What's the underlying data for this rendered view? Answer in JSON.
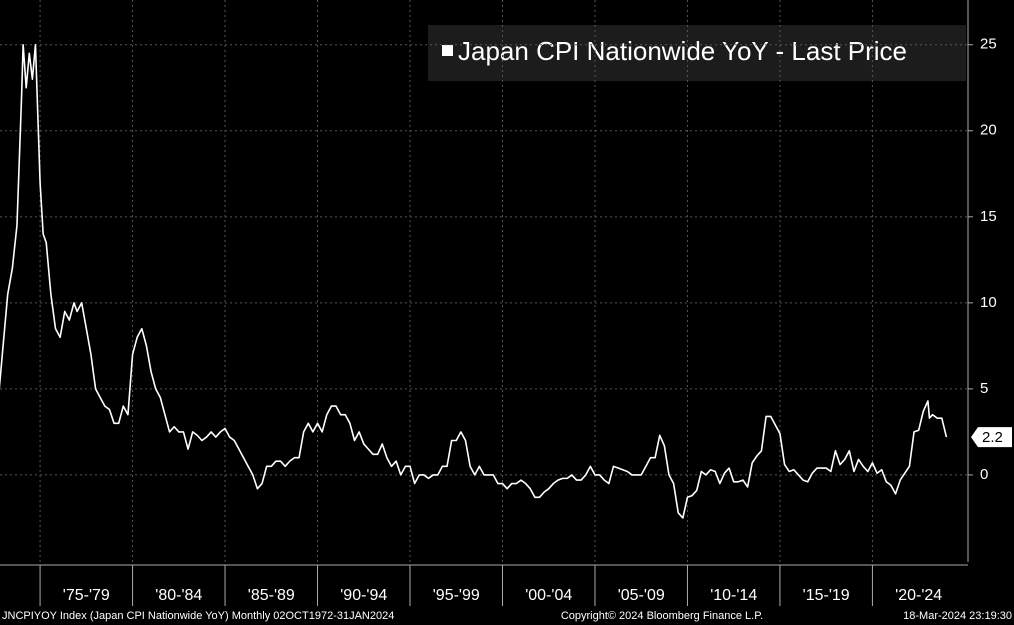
{
  "chart_data": {
    "type": "line",
    "legend": "Japan CPI Nationwide YoY - Last Price",
    "footer_left": "JNCPIYOY Index (Japan CPI Nationwide YoY)  Monthly 02OCT1972-31JAN2024",
    "footer_center": "Copyright© 2024 Bloomberg Finance L.P.",
    "footer_right": "18-Mar-2024 23:19:30",
    "x": [
      "1972-10",
      "1973-01",
      "1973-04",
      "1973-07",
      "1973-10",
      "1974-01",
      "1974-02",
      "1974-04",
      "1974-06",
      "1974-08",
      "1974-10",
      "1975-01",
      "1975-03",
      "1975-05",
      "1975-08",
      "1975-11",
      "1976-02",
      "1976-05",
      "1976-08",
      "1976-11",
      "1977-01",
      "1977-04",
      "1977-07",
      "1977-10",
      "1978-01",
      "1978-04",
      "1978-07",
      "1978-10",
      "1979-01",
      "1979-04",
      "1979-07",
      "1979-10",
      "1980-01",
      "1980-04",
      "1980-07",
      "1980-10",
      "1981-01",
      "1981-04",
      "1981-07",
      "1981-10",
      "1982-01",
      "1982-04",
      "1982-07",
      "1982-10",
      "1983-01",
      "1983-04",
      "1983-07",
      "1983-10",
      "1984-01",
      "1984-04",
      "1984-07",
      "1984-10",
      "1985-01",
      "1985-04",
      "1985-07",
      "1985-10",
      "1986-01",
      "1986-04",
      "1986-07",
      "1986-10",
      "1987-01",
      "1987-04",
      "1987-07",
      "1987-10",
      "1988-01",
      "1988-04",
      "1988-07",
      "1988-10",
      "1989-01",
      "1989-04",
      "1989-07",
      "1989-10",
      "1990-01",
      "1990-04",
      "1990-07",
      "1990-10",
      "1991-01",
      "1991-04",
      "1991-07",
      "1991-10",
      "1992-01",
      "1992-04",
      "1992-07",
      "1992-10",
      "1993-01",
      "1993-04",
      "1993-07",
      "1993-10",
      "1994-01",
      "1994-04",
      "1994-07",
      "1994-10",
      "1995-01",
      "1995-04",
      "1995-07",
      "1995-10",
      "1996-01",
      "1996-04",
      "1996-07",
      "1996-10",
      "1997-01",
      "1997-04",
      "1997-07",
      "1997-10",
      "1998-01",
      "1998-04",
      "1998-07",
      "1998-10",
      "1999-01",
      "1999-04",
      "1999-07",
      "1999-10",
      "2000-01",
      "2000-04",
      "2000-07",
      "2000-10",
      "2001-01",
      "2001-04",
      "2001-07",
      "2001-10",
      "2002-01",
      "2002-04",
      "2002-07",
      "2002-10",
      "2003-01",
      "2003-04",
      "2003-07",
      "2003-10",
      "2004-01",
      "2004-04",
      "2004-07",
      "2004-10",
      "2005-01",
      "2005-04",
      "2005-07",
      "2005-10",
      "2006-01",
      "2006-04",
      "2006-07",
      "2006-10",
      "2007-01",
      "2007-04",
      "2007-07",
      "2007-10",
      "2008-01",
      "2008-04",
      "2008-07",
      "2008-10",
      "2009-01",
      "2009-04",
      "2009-07",
      "2009-10",
      "2010-01",
      "2010-04",
      "2010-07",
      "2010-10",
      "2011-01",
      "2011-04",
      "2011-07",
      "2011-10",
      "2012-01",
      "2012-04",
      "2012-07",
      "2012-10",
      "2013-01",
      "2013-04",
      "2013-07",
      "2013-10",
      "2014-01",
      "2014-04",
      "2014-07",
      "2014-10",
      "2015-01",
      "2015-04",
      "2015-07",
      "2015-10",
      "2016-01",
      "2016-04",
      "2016-07",
      "2016-10",
      "2017-01",
      "2017-04",
      "2017-07",
      "2017-10",
      "2018-01",
      "2018-04",
      "2018-07",
      "2018-10",
      "2019-01",
      "2019-04",
      "2019-07",
      "2019-10",
      "2020-01",
      "2020-04",
      "2020-07",
      "2020-10",
      "2021-01",
      "2021-04",
      "2021-07",
      "2021-10",
      "2022-01",
      "2022-04",
      "2022-07",
      "2022-10",
      "2023-01",
      "2023-02",
      "2023-04",
      "2023-07",
      "2023-10",
      "2024-01"
    ],
    "series": [
      {
        "name": "Japan CPI Nationwide YoY",
        "color": "#ffffff",
        "values": [
          4.5,
          7.5,
          10.5,
          12,
          14.5,
          22,
          25,
          22.5,
          24.5,
          23,
          25,
          17,
          14,
          13.5,
          10.5,
          8.5,
          8,
          9.5,
          9,
          10,
          9.5,
          10,
          8.5,
          7,
          5,
          4.5,
          4,
          3.8,
          3,
          3,
          4,
          3.5,
          7,
          8,
          8.5,
          7.5,
          6,
          5,
          4.5,
          3.5,
          2.5,
          2.8,
          2.5,
          2.5,
          1.5,
          2.5,
          2.3,
          2,
          2.2,
          2.5,
          2.2,
          2.5,
          2.7,
          2.2,
          2.0,
          1.5,
          1.0,
          0.5,
          0,
          -0.8,
          -0.5,
          0.5,
          0.5,
          0.8,
          0.8,
          0.5,
          0.8,
          1.0,
          1.0,
          2.5,
          3,
          2.5,
          3,
          2.5,
          3.5,
          4,
          4,
          3.5,
          3.5,
          3,
          2,
          2.5,
          1.8,
          1.5,
          1.2,
          1.2,
          1.8,
          1.0,
          0.5,
          0.8,
          0,
          0.5,
          0.5,
          -0.5,
          0,
          0,
          -0.2,
          0,
          0,
          0.5,
          0.5,
          2,
          2,
          2.5,
          2,
          0.5,
          0,
          0.5,
          0,
          0,
          0,
          -0.5,
          -0.5,
          -0.8,
          -0.5,
          -0.5,
          -0.3,
          -0.5,
          -0.8,
          -1.3,
          -1.3,
          -1,
          -0.8,
          -0.5,
          -0.3,
          -0.2,
          -0.2,
          0,
          -0.3,
          -0.3,
          0,
          0.5,
          0,
          0,
          -0.3,
          -0.5,
          0.5,
          0.4,
          0.3,
          0.2,
          0,
          0,
          0,
          0.5,
          1,
          1,
          2.3,
          1.7,
          0,
          -0.5,
          -2.2,
          -2.5,
          -1.3,
          -1.2,
          -0.9,
          0.2,
          0,
          0.3,
          0.2,
          -0.5,
          0.1,
          0.4,
          -0.4,
          -0.4,
          -0.3,
          -0.7,
          0.7,
          1.1,
          1.4,
          3.4,
          3.4,
          2.9,
          2.4,
          0.6,
          0.2,
          0.3,
          0,
          -0.3,
          -0.4,
          0.1,
          0.4,
          0.4,
          0.4,
          0.2,
          1.4,
          0.6,
          0.9,
          1.4,
          0.2,
          0.9,
          0.5,
          0.2,
          0.7,
          0.1,
          0.3,
          -0.4,
          -0.6,
          -1.1,
          -0.3,
          0.1,
          0.5,
          2.5,
          2.6,
          3.7,
          4.3,
          3.3,
          3.5,
          3.3,
          3.3,
          2.2
        ]
      }
    ],
    "xlim": [
      "1972-11",
      "2025-03"
    ],
    "xticks": [
      {
        "value": "1975-01",
        "label": "'75-'79"
      },
      {
        "value": "1980-01",
        "label": "'80-'84"
      },
      {
        "value": "1985-01",
        "label": "'85-'89"
      },
      {
        "value": "1990-01",
        "label": "'90-'94"
      },
      {
        "value": "1995-01",
        "label": "'95-'99"
      },
      {
        "value": "2000-01",
        "label": "'00-'04"
      },
      {
        "value": "2005-01",
        "label": "'05-'09"
      },
      {
        "value": "2010-01",
        "label": "'10-'14"
      },
      {
        "value": "2015-01",
        "label": "'15-'19"
      },
      {
        "value": "2020-01",
        "label": "'20-'24"
      }
    ],
    "ylim": [
      -5.06,
      27.6
    ],
    "yticks": [
      0,
      5,
      10,
      15,
      20,
      25
    ],
    "grid": true
  }
}
